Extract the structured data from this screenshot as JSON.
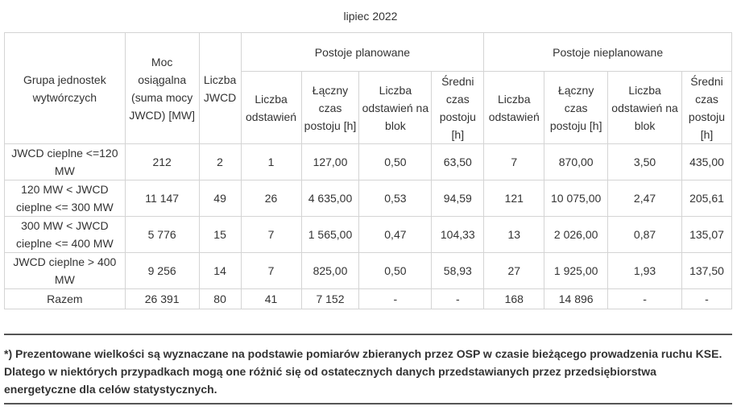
{
  "caption": "lipiec 2022",
  "header": {
    "group": "Grupa jednostek wytwórczych",
    "power": "Moc osiągalna (suma mocy JWCD) [MW]",
    "count": "Liczba JWCD",
    "planned": "Postoje planowane",
    "unplanned": "Postoje nieplanowane",
    "sub": [
      "Liczba odstawień",
      "Łączny czas postoju [h]",
      "Liczba odstawień na blok",
      "Średni czas postoju [h]"
    ]
  },
  "rows": [
    {
      "group": "JWCD cieplne <=120 MW",
      "power": "212",
      "count": "2",
      "p": [
        "1",
        "127,00",
        "0,50",
        "63,50"
      ],
      "u": [
        "7",
        "870,00",
        "3,50",
        "435,00"
      ]
    },
    {
      "group": "120 MW < JWCD cieplne <= 300 MW",
      "power": "11 147",
      "count": "49",
      "p": [
        "26",
        "4 635,00",
        "0,53",
        "94,59"
      ],
      "u": [
        "121",
        "10 075,00",
        "2,47",
        "205,61"
      ]
    },
    {
      "group": "300 MW < JWCD cieplne <= 400 MW",
      "power": "5 776",
      "count": "15",
      "p": [
        "7",
        "1 565,00",
        "0,47",
        "104,33"
      ],
      "u": [
        "13",
        "2 026,00",
        "0,87",
        "135,07"
      ]
    },
    {
      "group": "JWCD cieplne > 400 MW",
      "power": "9 256",
      "count": "14",
      "p": [
        "7",
        "825,00",
        "0,50",
        "58,93"
      ],
      "u": [
        "27",
        "1 925,00",
        "1,93",
        "137,50"
      ]
    },
    {
      "group": "Razem",
      "power": "26 391",
      "count": "80",
      "p": [
        "41",
        "7 152",
        "-",
        "-"
      ],
      "u": [
        "168",
        "14 896",
        "-",
        "-"
      ]
    }
  ],
  "footnote": "*) Prezentowane wielkości są wyznaczane na podstawie pomiarów zbieranych przez OSP w czasie bieżącego prowadzenia ruchu KSE. Dlatego w niektórych przypadkach mogą one różnić się od ostatecznych danych przedstawianych przez przedsiębiorstwa energetyczne dla celów statystycznych."
}
